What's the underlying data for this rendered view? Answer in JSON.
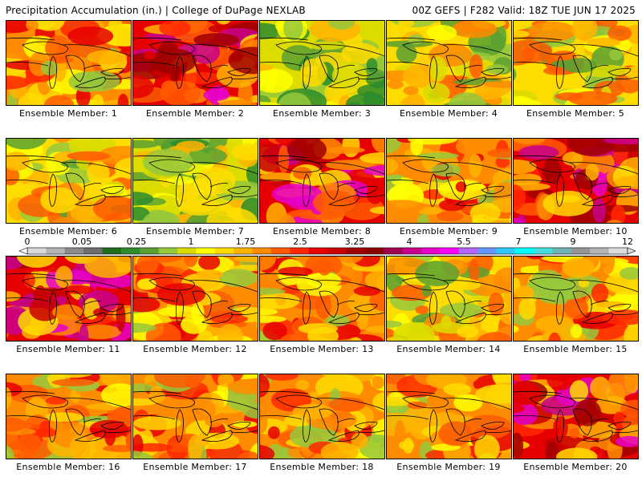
{
  "header": {
    "title_left": "Precipitation Accumulation (in.) | College of DuPage NEXLAB",
    "title_right": "00Z GEFS | F282 Valid: 18Z TUE JUN 17 2025"
  },
  "legend": {
    "tick_labels": [
      "0",
      "0.05",
      "0.25",
      "1",
      "1.75",
      "2.5",
      "3.25",
      "4",
      "5.5",
      "7",
      "9",
      "12"
    ],
    "colors": [
      "#d8d8d8",
      "#b4b4b4",
      "#8c8c8c",
      "#6e6e6e",
      "#1e6e1e",
      "#2d8c2d",
      "#5aa032",
      "#96c83c",
      "#dcdc00",
      "#ffff00",
      "#ffdc00",
      "#ffb400",
      "#ff8c00",
      "#ff5a00",
      "#ff2800",
      "#e60000",
      "#c80000",
      "#a00000",
      "#8c0000",
      "#a00050",
      "#c8008c",
      "#e600c8",
      "#ff00ff",
      "#b464ff",
      "#6496ff",
      "#32c8ff",
      "#00ffff",
      "#46dcdc",
      "#6eb4b4",
      "#969696",
      "#b4b4b4",
      "#dcdcdc"
    ]
  },
  "panels": [
    {
      "label": "Ensemble Member: 1",
      "palette": "orange"
    },
    {
      "label": "Ensemble Member: 2",
      "palette": "red"
    },
    {
      "label": "Ensemble Member: 3",
      "palette": "green"
    },
    {
      "label": "Ensemble Member: 4",
      "palette": "mixed"
    },
    {
      "label": "Ensemble Member: 5",
      "palette": "mixed"
    },
    {
      "label": "Ensemble Member: 6",
      "palette": "mixed"
    },
    {
      "label": "Ensemble Member: 7",
      "palette": "green"
    },
    {
      "label": "Ensemble Member: 8",
      "palette": "red"
    },
    {
      "label": "Ensemble Member: 9",
      "palette": "orange"
    },
    {
      "label": "Ensemble Member: 10",
      "palette": "red"
    },
    {
      "label": "Ensemble Member: 11",
      "palette": "red"
    },
    {
      "label": "Ensemble Member: 12",
      "palette": "orange"
    },
    {
      "label": "Ensemble Member: 13",
      "palette": "orange"
    },
    {
      "label": "Ensemble Member: 14",
      "palette": "mixed"
    },
    {
      "label": "Ensemble Member: 15",
      "palette": "orange"
    },
    {
      "label": "Ensemble Member: 16",
      "palette": "orange"
    },
    {
      "label": "Ensemble Member: 17",
      "palette": "orange"
    },
    {
      "label": "Ensemble Member: 18",
      "palette": "orange"
    },
    {
      "label": "Ensemble Member: 19",
      "palette": "orange"
    },
    {
      "label": "Ensemble Member: 20",
      "palette": "red"
    }
  ]
}
